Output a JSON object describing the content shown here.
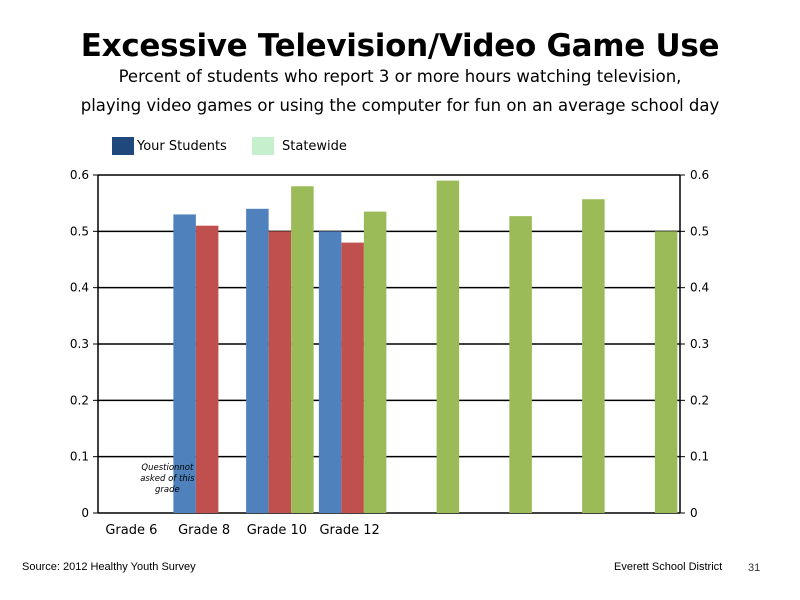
{
  "title": "Excessive Television/Video Game Use",
  "subtitle_line1": "Percent of students who report 3 or more hours watching television,",
  "subtitle_line2": "playing video games or using the computer for fun on an average school day",
  "legend": {
    "items": [
      {
        "label": "Your Students",
        "color": "#1f497d"
      },
      {
        "label": "Statewide",
        "color": "#c6efce"
      }
    ]
  },
  "footer": {
    "source": "Source: 2012 Healthy Youth Survey",
    "district": "Everett School District",
    "page": "31"
  },
  "chart_data": {
    "type": "bar",
    "categories": [
      "Grade 6",
      "Grade 8",
      "Grade 10",
      "Grade 12",
      "",
      "",
      "",
      ""
    ],
    "series": [
      {
        "color": "#4f81bd",
        "values": [
          null,
          0.53,
          0.54,
          0.5,
          null,
          null,
          null,
          null
        ]
      },
      {
        "color": "#c0504d",
        "values": [
          null,
          0.51,
          0.5,
          0.48,
          null,
          null,
          null,
          null
        ]
      },
      {
        "color": "#9bbb59",
        "values": [
          null,
          null,
          0.58,
          0.535,
          0.59,
          0.527,
          0.557,
          0.5
        ]
      }
    ],
    "ylim": [
      0,
      0.6
    ],
    "yticks": [
      "0",
      "0.1",
      "0.2",
      "0.3",
      "0.4",
      "0.5",
      "0.6"
    ],
    "y2ticks": [
      "0",
      "0.1",
      "0.2",
      "0.3",
      "0.4",
      "0.5",
      "0.6"
    ],
    "grid": true,
    "annotation": [
      "Questionnot",
      "asked of this",
      "grade"
    ]
  }
}
